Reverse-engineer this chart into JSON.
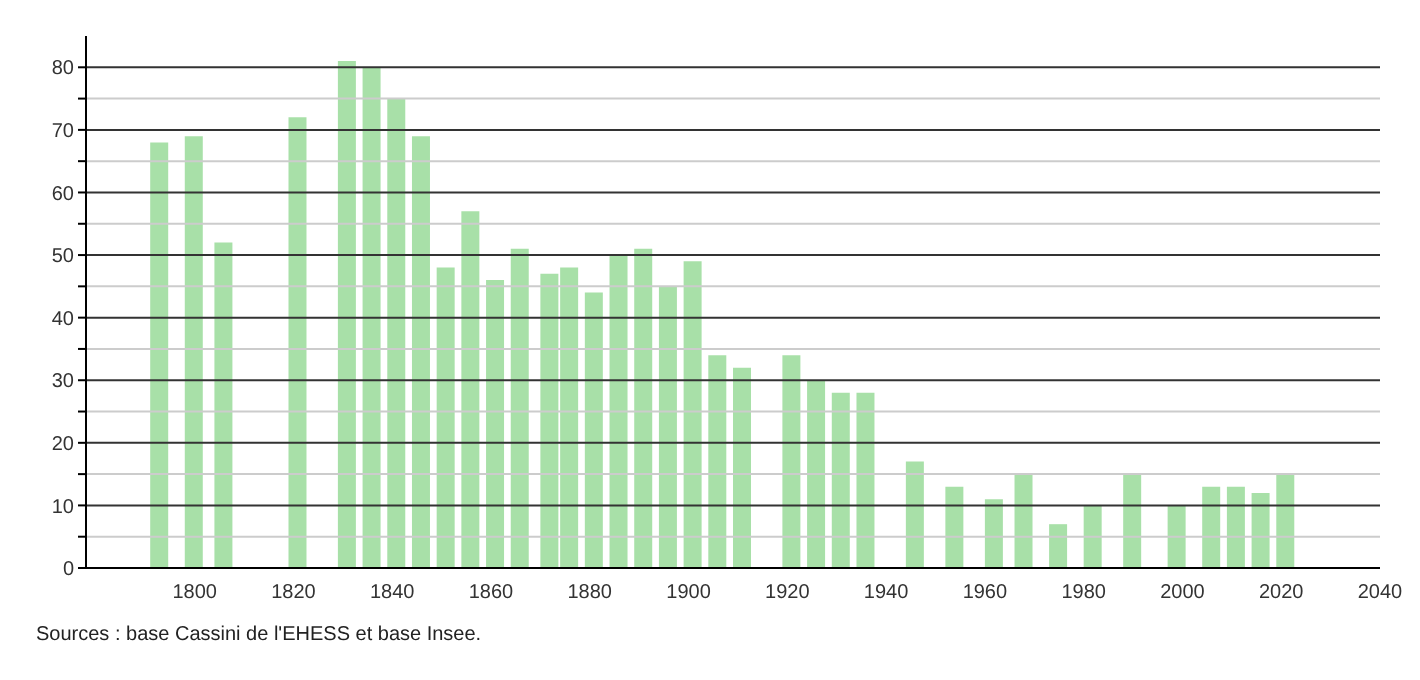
{
  "chart_data": {
    "type": "bar",
    "color": "#a8e0a8",
    "x": [
      1793,
      1800,
      1806,
      1821,
      1831,
      1836,
      1841,
      1846,
      1851,
      1856,
      1861,
      1866,
      1872,
      1876,
      1881,
      1886,
      1891,
      1896,
      1901,
      1906,
      1911,
      1921,
      1926,
      1931,
      1936,
      1946,
      1954,
      1962,
      1968,
      1975,
      1982,
      1990,
      1999,
      2006,
      2011,
      2016,
      2021
    ],
    "values": [
      68,
      69,
      52,
      72,
      81,
      80,
      75,
      69,
      48,
      57,
      46,
      51,
      47,
      48,
      44,
      50,
      51,
      45,
      49,
      34,
      32,
      34,
      30,
      28,
      28,
      17,
      13,
      11,
      15,
      7,
      10,
      15,
      10,
      13,
      13,
      12,
      15
    ],
    "xlim": [
      1778,
      2040
    ],
    "xticks": [
      1800,
      1820,
      1840,
      1860,
      1880,
      1900,
      1920,
      1940,
      1960,
      1980,
      2000,
      2020,
      2040
    ],
    "ylim": [
      0,
      85
    ],
    "yticks": [
      0,
      {
        "value": 5,
        "label": null
      },
      10,
      {
        "value": 15,
        "label": null
      },
      20,
      {
        "value": 25,
        "label": null
      },
      30,
      {
        "value": 35,
        "label": null
      },
      40,
      {
        "value": 45,
        "label": null
      },
      50,
      {
        "value": 55,
        "label": null
      },
      60,
      {
        "value": 65,
        "label": null
      },
      70,
      {
        "value": 75,
        "label": null
      },
      80
    ],
    "grid": "y",
    "annotations": [
      "Sources : base Cassini de l'EHESS et base Insee."
    ]
  }
}
